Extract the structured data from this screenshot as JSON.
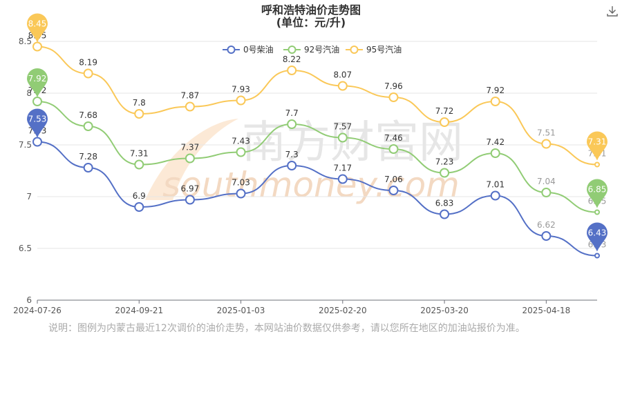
{
  "page": {
    "note": "说明：图例为内蒙古最近12次调价的油价走势，本网站油价数据仅供参考，请以您所在地区的加油站报价为准。",
    "download_icon": "download-icon",
    "watermark": {
      "cn": "南方财富网",
      "en": "southmoney.com"
    }
  },
  "chart_data": {
    "type": "line",
    "title": "呼和浩特油价走势图",
    "subtitle": "(单位：元/升)",
    "xlabel": "",
    "ylabel": "",
    "ylim": [
      6,
      8.5
    ],
    "yticks": [
      "6",
      "6.5",
      "7",
      "7.5",
      "8",
      "8.5"
    ],
    "x_tick_labels": [
      "2024-07-26",
      "2024-09-21",
      "2025-01-03",
      "2025-02-20",
      "2025-03-20",
      "2025-04-18"
    ],
    "x_tick_indices": [
      0,
      2,
      4,
      6,
      8,
      10
    ],
    "grid": true,
    "legend_position": "top-center",
    "series": [
      {
        "name": "0号柴油",
        "color": "#5470c6",
        "values": [
          7.53,
          7.28,
          6.9,
          6.97,
          7.03,
          7.3,
          7.17,
          7.06,
          6.83,
          7.01,
          6.62,
          6.43
        ],
        "max_label": "7.53",
        "min_label": "6.43"
      },
      {
        "name": "92号汽油",
        "color": "#91cc75",
        "values": [
          7.92,
          7.68,
          7.31,
          7.37,
          7.43,
          7.7,
          7.57,
          7.46,
          7.23,
          7.42,
          7.04,
          6.85
        ],
        "max_label": "7.92",
        "min_label": "6.85"
      },
      {
        "name": "95号汽油",
        "color": "#fac858",
        "values": [
          8.45,
          8.19,
          7.8,
          7.87,
          7.93,
          8.22,
          8.07,
          7.96,
          7.72,
          7.92,
          7.51,
          7.31
        ],
        "max_label": "8.45",
        "min_label": "7.31"
      }
    ]
  }
}
